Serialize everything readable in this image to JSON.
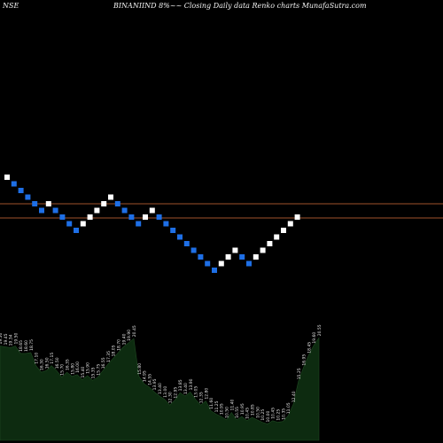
{
  "header": {
    "exchange": "NSE",
    "title": "BINANIIND 8%~~ Closing Daily data Renko charts MunafaSutra.com"
  },
  "chart_data": [
    {
      "type": "renko",
      "colors": {
        "up": "#ffffff",
        "down": "#1e6fe6",
        "line": "#a0522d",
        "background": "#000000"
      },
      "bricks": [
        "up",
        "down",
        "down",
        "down",
        "down",
        "down",
        "up",
        "down",
        "down",
        "down",
        "down",
        "up",
        "up",
        "up",
        "up",
        "up",
        "down",
        "down",
        "down",
        "down",
        "up",
        "up",
        "down",
        "down",
        "down",
        "down",
        "down",
        "down",
        "down",
        "down",
        "down",
        "up",
        "up",
        "up",
        "down",
        "down",
        "up",
        "up",
        "up",
        "up",
        "up",
        "up",
        "up"
      ],
      "horizontal_lines": 2,
      "grid": false
    },
    {
      "type": "area",
      "color": "#0d2b10",
      "values": [
        19.5,
        19.4,
        19.3,
        19.5,
        18.6,
        18.6,
        18.7,
        17.1,
        16.3,
        16.5,
        17.1,
        16.5,
        15.7,
        16.3,
        15.8,
        16.0,
        15.4,
        15.9,
        15.3,
        15.7,
        16.5,
        17.3,
        18.0,
        18.7,
        19.4,
        19.9,
        20.4,
        15.8,
        14.9,
        14.5,
        13.9,
        13.4,
        13.0,
        12.3,
        12.9,
        13.8,
        13.4,
        13.9,
        13.0,
        12.3,
        12.8,
        11.6,
        11.2,
        10.9,
        10.5,
        11.4,
        10.5,
        10.9,
        10.4,
        10.8,
        10.5,
        10.2,
        10.0,
        10.4,
        10.2,
        10.3,
        11.0,
        12.4,
        15.2,
        16.9,
        18.4,
        19.6,
        20.5
      ],
      "labels": [
        "19.50",
        "19.45",
        "19.34",
        "19.50",
        "18.65",
        "18.60",
        "18.75",
        "17.10",
        "16.30",
        "16.50",
        "17.15",
        "16.50",
        "15.70",
        "16.35",
        "15.80",
        "16.00",
        "15.40",
        "15.90",
        "15.35",
        "15.75",
        "16.55",
        "17.35",
        "18.05",
        "18.70",
        "19.40",
        "19.90",
        "20.45",
        "15.80",
        "14.95",
        "14.55",
        "13.95",
        "13.40",
        "13.00",
        "12.30",
        "12.95",
        "13.85",
        "13.40",
        "13.90",
        "13.05",
        "12.35",
        "12.80",
        "11.60",
        "11.25",
        "10.95",
        "10.50",
        "11.40",
        "10.55",
        "10.95",
        "10.45",
        "10.85",
        "10.50",
        "10.25",
        "10.00",
        "10.45",
        "10.25",
        "10.35",
        "11.05",
        "12.40",
        "15.25",
        "16.95",
        "18.45",
        "19.60",
        "20.55"
      ]
    }
  ]
}
